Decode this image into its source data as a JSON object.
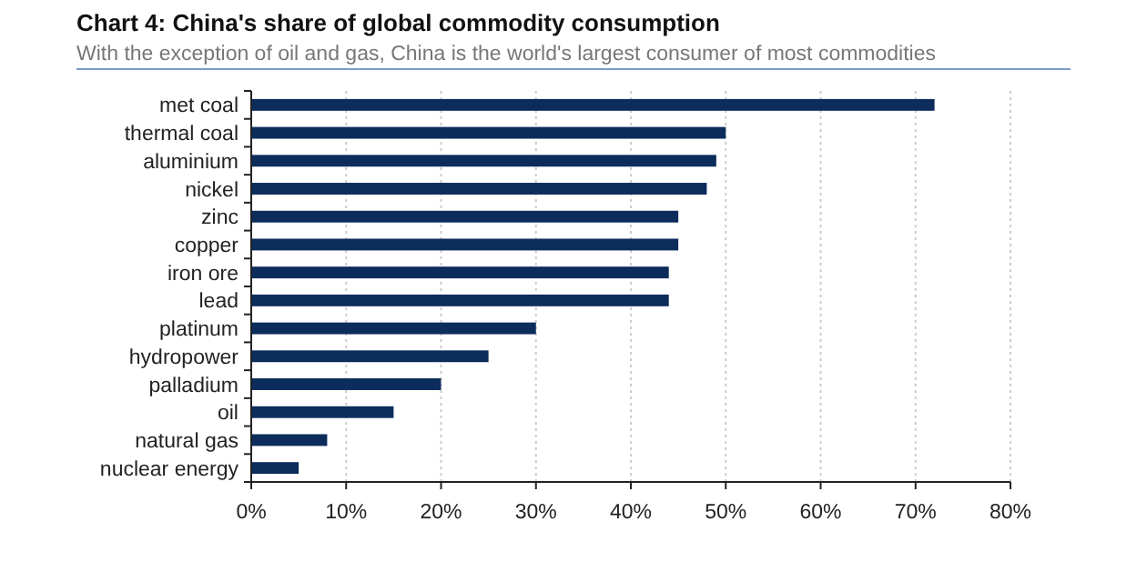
{
  "chart_data": {
    "type": "bar",
    "orientation": "horizontal",
    "title": "Chart 4: China's share of global commodity consumption",
    "subtitle": "With the exception of oil and gas, China is the world's largest consumer of most commodities",
    "categories": [
      "met coal",
      "thermal coal",
      "aluminium",
      "nickel",
      "zinc",
      "copper",
      "iron ore",
      "lead",
      "platinum",
      "hydropower",
      "palladium",
      "oil",
      "natural gas",
      "nuclear energy"
    ],
    "values": [
      72,
      50,
      49,
      48,
      45,
      45,
      44,
      44,
      30,
      25,
      20,
      15,
      8,
      5
    ],
    "color": "#0c2c5c",
    "xlim": [
      0,
      80
    ],
    "xticks": [
      {
        "value": 0,
        "label": "0%"
      },
      {
        "value": 10,
        "label": "10%"
      },
      {
        "value": 20,
        "label": "20%"
      },
      {
        "value": 30,
        "label": "30%"
      },
      {
        "value": 40,
        "label": "40%"
      },
      {
        "value": 50,
        "label": "50%"
      },
      {
        "value": 60,
        "label": "60%"
      },
      {
        "value": 70,
        "label": "70%"
      },
      {
        "value": 80,
        "label": "80%"
      }
    ],
    "grid": "x"
  }
}
